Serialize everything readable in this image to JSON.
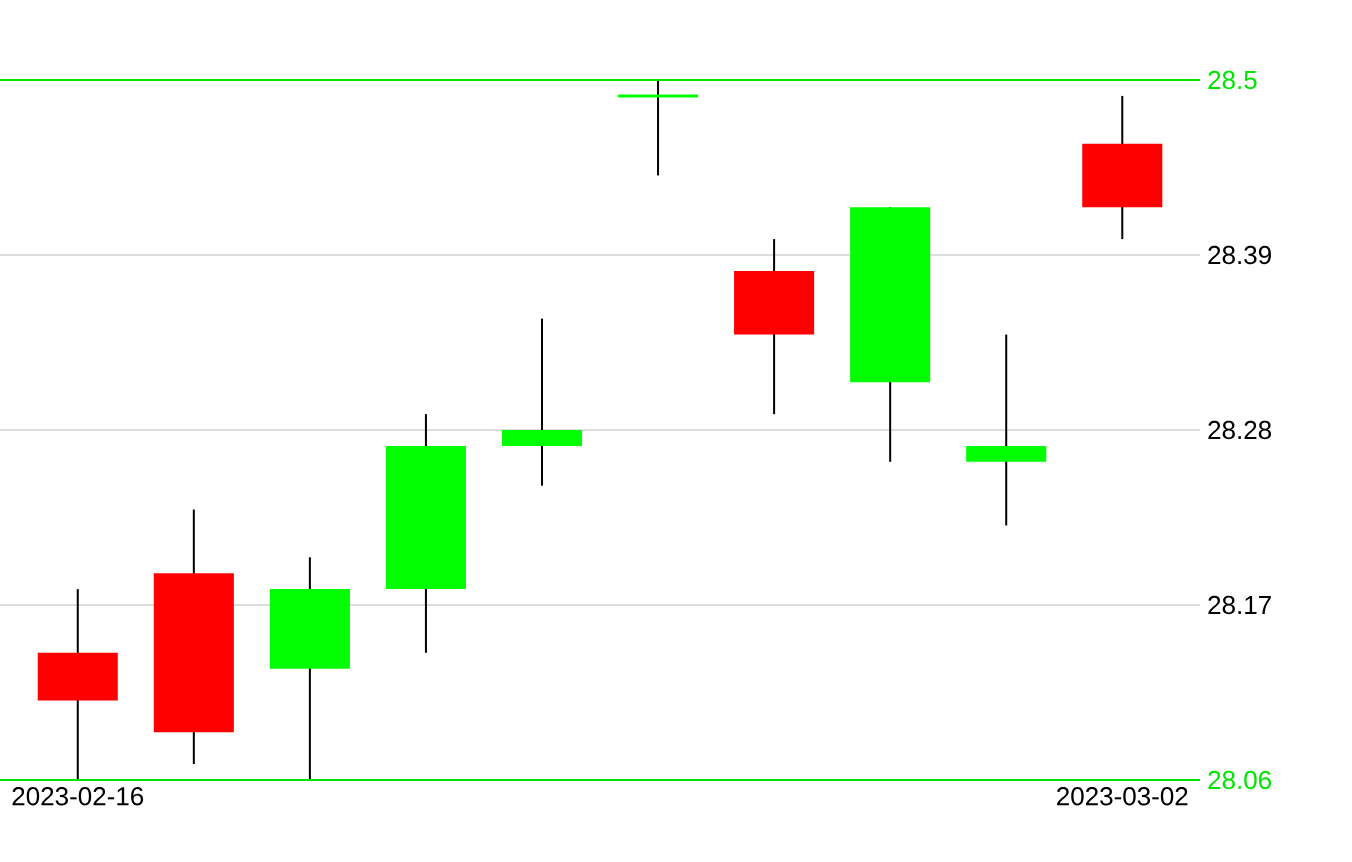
{
  "chart_data": {
    "type": "candlestick",
    "categories": [
      "2023-02-16",
      null,
      null,
      null,
      null,
      null,
      null,
      null,
      null,
      "2023-03-02"
    ],
    "ohlc": [
      [
        28.14,
        28.18,
        28.06,
        28.11
      ],
      [
        28.19,
        28.23,
        28.07,
        28.09
      ],
      [
        28.13,
        28.2,
        28.06,
        28.18
      ],
      [
        28.18,
        28.29,
        28.14,
        28.27
      ],
      [
        28.27,
        28.35,
        28.245,
        28.28
      ],
      [
        28.49,
        28.5,
        28.44,
        28.49
      ],
      [
        28.38,
        28.4,
        28.29,
        28.34
      ],
      [
        28.31,
        28.42,
        28.26,
        28.42
      ],
      [
        28.26,
        28.34,
        28.22,
        28.27
      ],
      [
        28.46,
        28.49,
        28.4,
        28.42
      ]
    ],
    "colors": [
      "#ff0000",
      "#ff0000",
      "#00ff00",
      "#00ff00",
      "#00ff00",
      "#00ff00",
      "#ff0000",
      "#00ff00",
      "#00ff00",
      "#ff0000"
    ],
    "ylim": [
      28.06,
      28.5
    ],
    "yticks": [
      28.06,
      28.17,
      28.28,
      28.39,
      28.5
    ],
    "grid": "y"
  }
}
